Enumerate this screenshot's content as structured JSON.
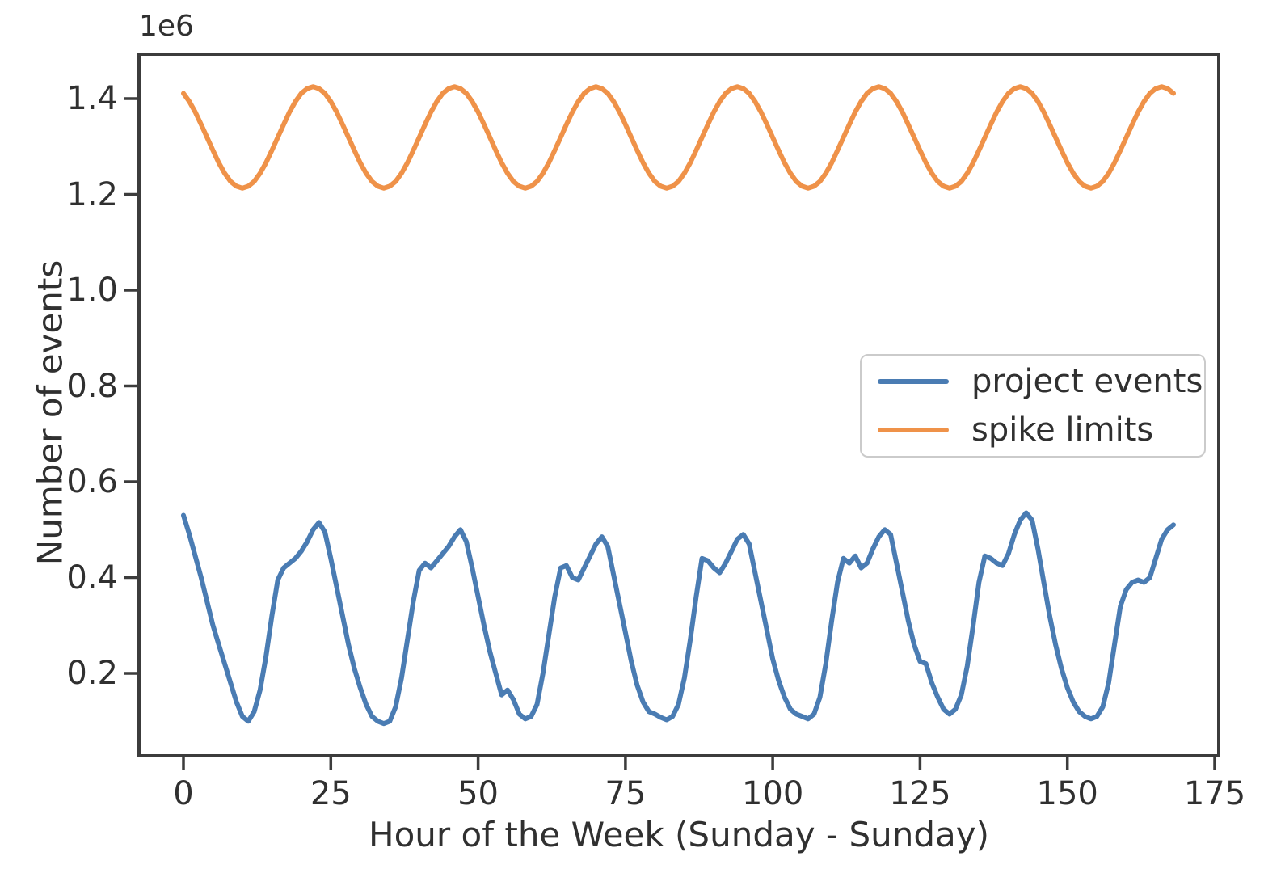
{
  "figure": {
    "offset_text": "1e6",
    "xlabel": "Hour of the Week (Sunday - Sunday)",
    "ylabel": "Number of events",
    "background": "#ffffff",
    "text_color": "#303030",
    "spine_color": "#3c3c3c"
  },
  "axes": {
    "x_tick_labels": [
      "0",
      "25",
      "50",
      "75",
      "100",
      "125",
      "150",
      "175"
    ],
    "x_tick_values": [
      0,
      25,
      50,
      75,
      100,
      125,
      150,
      175
    ],
    "y_tick_labels": [
      "0.2",
      "0.4",
      "0.6",
      "0.8",
      "1.0",
      "1.2",
      "1.4"
    ],
    "y_tick_values": [
      200000,
      400000,
      600000,
      800000,
      1000000,
      1200000,
      1400000
    ],
    "y_offset_multiplier": "1e6"
  },
  "legend": {
    "items": [
      {
        "label": "project events",
        "color": "#4a7cb3"
      },
      {
        "label": "spike limits",
        "color": "#ef9249"
      }
    ]
  },
  "chart_data": {
    "type": "line",
    "title": "",
    "xlabel": "Hour of the Week (Sunday - Sunday)",
    "ylabel": "Number of events",
    "xlim": [
      -8.4,
      176.4
    ],
    "ylim": [
      24500,
      1496000
    ],
    "grid": false,
    "legend_position": "center right",
    "x_start": 0,
    "x_step": 1,
    "x_end": 168,
    "series": [
      {
        "name": "project events",
        "color": "#4a7cb3",
        "values": [
          530000,
          490000,
          445000,
          400000,
          350000,
          300000,
          260000,
          220000,
          180000,
          140000,
          110000,
          100000,
          120000,
          165000,
          235000,
          320000,
          395000,
          420000,
          430000,
          440000,
          455000,
          475000,
          500000,
          515000,
          495000,
          440000,
          380000,
          320000,
          260000,
          210000,
          170000,
          135000,
          110000,
          100000,
          95000,
          100000,
          130000,
          190000,
          270000,
          350000,
          415000,
          430000,
          420000,
          435000,
          450000,
          465000,
          485000,
          500000,
          475000,
          420000,
          360000,
          300000,
          245000,
          200000,
          155000,
          165000,
          145000,
          115000,
          105000,
          110000,
          135000,
          200000,
          280000,
          360000,
          420000,
          425000,
          400000,
          395000,
          420000,
          445000,
          470000,
          485000,
          465000,
          405000,
          345000,
          285000,
          225000,
          175000,
          140000,
          120000,
          115000,
          108000,
          103000,
          110000,
          135000,
          190000,
          270000,
          360000,
          440000,
          435000,
          420000,
          410000,
          430000,
          455000,
          480000,
          490000,
          470000,
          410000,
          350000,
          290000,
          230000,
          185000,
          150000,
          125000,
          115000,
          110000,
          105000,
          115000,
          150000,
          220000,
          310000,
          390000,
          440000,
          430000,
          445000,
          420000,
          430000,
          460000,
          485000,
          500000,
          490000,
          430000,
          370000,
          310000,
          260000,
          225000,
          220000,
          180000,
          150000,
          125000,
          115000,
          125000,
          155000,
          215000,
          300000,
          390000,
          445000,
          440000,
          430000,
          425000,
          450000,
          490000,
          520000,
          535000,
          520000,
          460000,
          390000,
          320000,
          260000,
          210000,
          170000,
          140000,
          120000,
          110000,
          105000,
          110000,
          130000,
          180000,
          260000,
          340000,
          375000,
          390000,
          395000,
          390000,
          400000,
          440000,
          480000,
          500000,
          510000
        ]
      },
      {
        "name": "spike limits",
        "color": "#ef9249",
        "values": [
          1411000,
          1394000,
          1372000,
          1346000,
          1319000,
          1292000,
          1266000,
          1244000,
          1227000,
          1217000,
          1213000,
          1217000,
          1227000,
          1244000,
          1266000,
          1292000,
          1319000,
          1346000,
          1372000,
          1394000,
          1411000,
          1421000,
          1425000,
          1421000,
          1411000,
          1394000,
          1372000,
          1346000,
          1319000,
          1292000,
          1266000,
          1244000,
          1227000,
          1217000,
          1213000,
          1217000,
          1227000,
          1244000,
          1266000,
          1292000,
          1319000,
          1346000,
          1372000,
          1394000,
          1411000,
          1421000,
          1425000,
          1421000,
          1411000,
          1394000,
          1372000,
          1346000,
          1319000,
          1292000,
          1266000,
          1244000,
          1227000,
          1217000,
          1213000,
          1217000,
          1227000,
          1244000,
          1266000,
          1292000,
          1319000,
          1346000,
          1372000,
          1394000,
          1411000,
          1421000,
          1425000,
          1421000,
          1411000,
          1394000,
          1372000,
          1346000,
          1319000,
          1292000,
          1266000,
          1244000,
          1227000,
          1217000,
          1213000,
          1217000,
          1227000,
          1244000,
          1266000,
          1292000,
          1319000,
          1346000,
          1372000,
          1394000,
          1411000,
          1421000,
          1425000,
          1421000,
          1411000,
          1394000,
          1372000,
          1346000,
          1319000,
          1292000,
          1266000,
          1244000,
          1227000,
          1217000,
          1213000,
          1217000,
          1227000,
          1244000,
          1266000,
          1292000,
          1319000,
          1346000,
          1372000,
          1394000,
          1411000,
          1421000,
          1425000,
          1421000,
          1411000,
          1394000,
          1372000,
          1346000,
          1319000,
          1292000,
          1266000,
          1244000,
          1227000,
          1217000,
          1213000,
          1217000,
          1227000,
          1244000,
          1266000,
          1292000,
          1319000,
          1346000,
          1372000,
          1394000,
          1411000,
          1421000,
          1425000,
          1421000,
          1411000,
          1394000,
          1372000,
          1346000,
          1319000,
          1292000,
          1266000,
          1244000,
          1227000,
          1217000,
          1213000,
          1217000,
          1227000,
          1244000,
          1266000,
          1292000,
          1319000,
          1346000,
          1372000,
          1394000,
          1411000,
          1421000,
          1425000,
          1421000,
          1411000
        ]
      }
    ]
  }
}
